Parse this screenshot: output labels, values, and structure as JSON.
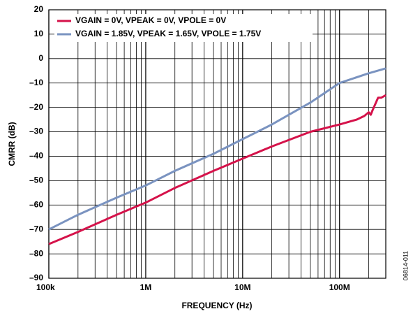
{
  "chart_data": {
    "type": "line",
    "xlabel": "FREQUENCY (Hz)",
    "ylabel": "CMRR (dB)",
    "annotation": "06814-011",
    "xscale": "log",
    "xlim": [
      100000,
      300000000
    ],
    "ylim": [
      -90,
      20
    ],
    "xticks": [
      {
        "value": 100000,
        "label": "100k"
      },
      {
        "value": 1000000,
        "label": "1M"
      },
      {
        "value": 10000000,
        "label": "10M"
      },
      {
        "value": 100000000,
        "label": "100M"
      }
    ],
    "xminorticks": [
      200000,
      300000,
      400000,
      500000,
      600000,
      700000,
      800000,
      900000,
      2000000,
      3000000,
      4000000,
      5000000,
      6000000,
      7000000,
      8000000,
      9000000,
      20000000,
      30000000,
      40000000,
      50000000,
      60000000,
      70000000,
      80000000,
      90000000,
      200000000,
      300000000
    ],
    "yticks": [
      {
        "value": -90,
        "label": "–90"
      },
      {
        "value": -80,
        "label": "–80"
      },
      {
        "value": -70,
        "label": "–70"
      },
      {
        "value": -60,
        "label": "–60"
      },
      {
        "value": -50,
        "label": "–50"
      },
      {
        "value": -40,
        "label": "–40"
      },
      {
        "value": -30,
        "label": "–30"
      },
      {
        "value": -20,
        "label": "–20"
      },
      {
        "value": -10,
        "label": "–10"
      },
      0,
      10,
      20
    ],
    "grid": true,
    "legend": "upper left",
    "series": [
      {
        "name": "VGAIN = 0V, VPEAK = 0V, VPOLE = 0V",
        "color": "#d5124a",
        "x": [
          100000,
          200000,
          500000,
          1000000,
          2000000,
          5000000,
          10000000,
          20000000,
          50000000,
          100000000,
          150000000,
          180000000,
          200000000,
          210000000,
          220000000,
          250000000,
          270000000,
          300000000
        ],
        "values": [
          -76,
          -71,
          -64,
          -59,
          -53,
          -46,
          -41,
          -36,
          -30,
          -27,
          -25,
          -23.5,
          -22,
          -23,
          -21,
          -16,
          -16,
          -15
        ]
      },
      {
        "name": "VGAIN = 1.85V, VPEAK = 1.65V, VPOLE = 1.75V",
        "color": "#7a93c0",
        "x": [
          100000,
          200000,
          500000,
          1000000,
          2000000,
          5000000,
          10000000,
          20000000,
          50000000,
          100000000,
          200000000,
          300000000
        ],
        "values": [
          -70,
          -64,
          -57,
          -52,
          -46,
          -39,
          -33,
          -27,
          -18,
          -10,
          -6,
          -4
        ]
      }
    ]
  }
}
